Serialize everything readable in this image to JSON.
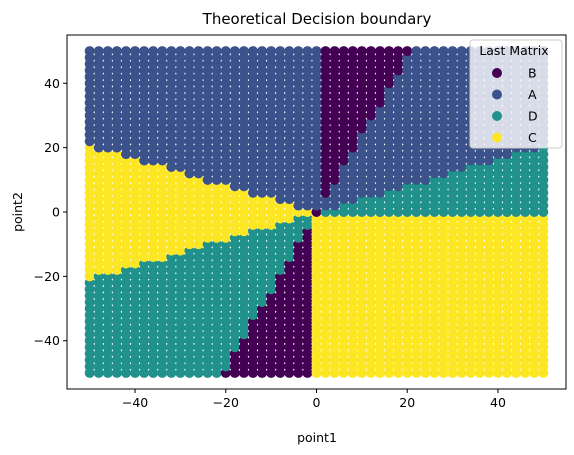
{
  "chart_data": {
    "type": "scatter",
    "title": "Theoretical Decision boundary",
    "xlabel": "point1",
    "ylabel": "point2",
    "xlim": [
      -55,
      55
    ],
    "ylim": [
      -55,
      55
    ],
    "x_ticks": [
      -40,
      -20,
      0,
      20,
      40
    ],
    "y_ticks": [
      -40,
      -20,
      0,
      20,
      40
    ],
    "x_tick_labels": [
      "−40",
      "−20",
      "0",
      "20",
      "40"
    ],
    "y_tick_labels": [
      "−40",
      "−20",
      "0",
      "20",
      "40"
    ],
    "grid": false,
    "grid_range": [
      -50,
      50
    ],
    "grid_step": 2,
    "legend": {
      "title": "Last Matrix",
      "placement": "top-right",
      "entries": [
        {
          "label": "B",
          "color": "#440154"
        },
        {
          "label": "A",
          "color": "#3b528b"
        },
        {
          "label": "D",
          "color": "#21918c"
        },
        {
          "label": "C",
          "color": "#fde725"
        }
      ]
    },
    "regions": [
      {
        "label": "B",
        "angle_from_deg": 67.5,
        "angle_to_deg": 90
      },
      {
        "label": "D",
        "angle_from_deg": 0,
        "angle_to_deg": 22.5
      },
      {
        "label": "C",
        "angle_from_deg": -90,
        "angle_to_deg": 0
      }
    ]
  }
}
